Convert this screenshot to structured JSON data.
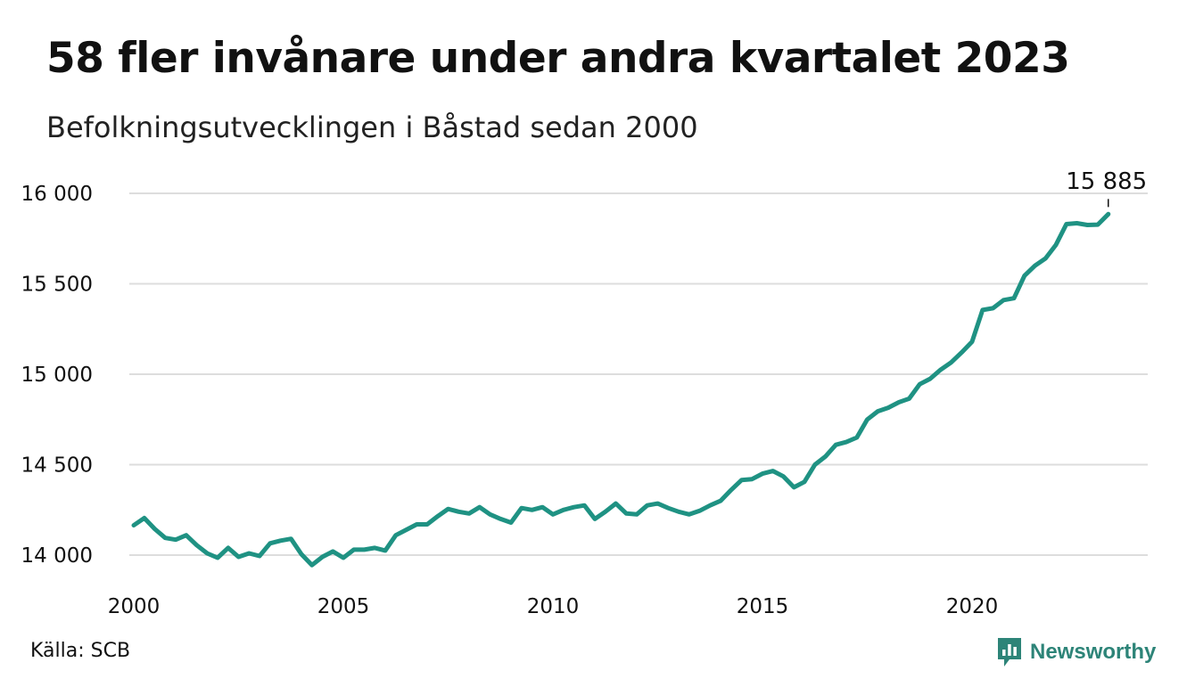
{
  "title": "58 fler invånare under andra kvartalet 2023",
  "subtitle": "Befolkningsutvecklingen i Båstad sedan 2000",
  "source": "Källa: SCB",
  "brand": "Newsworthy",
  "colors": {
    "line": "#1f9283",
    "grid": "#dddddd",
    "brand": "#2d8478"
  },
  "chart_data": {
    "type": "line",
    "title": "58 fler invånare under andra kvartalet 2023",
    "subtitle": "Befolkningsutvecklingen i Båstad sedan 2000",
    "xlabel": "",
    "ylabel": "",
    "xlim": [
      2000,
      2024.5
    ],
    "ylim": [
      13900,
      16000
    ],
    "x_ticks": [
      {
        "value": 2000,
        "label": "2000"
      },
      {
        "value": 2005,
        "label": "2005"
      },
      {
        "value": 2010,
        "label": "2010"
      },
      {
        "value": 2015,
        "label": "2015"
      },
      {
        "value": 2020,
        "label": "2020"
      }
    ],
    "y_ticks": [
      {
        "value": 14000,
        "label": "14 000"
      },
      {
        "value": 14500,
        "label": "14 500"
      },
      {
        "value": 15000,
        "label": "15 000"
      },
      {
        "value": 15500,
        "label": "15 500"
      },
      {
        "value": 16000,
        "label": "16 000"
      }
    ],
    "grid": true,
    "end_label": "15 885",
    "series": [
      {
        "values": [
          [
            2000.0,
            14165
          ],
          [
            2000.25,
            14205
          ],
          [
            2000.5,
            14145
          ],
          [
            2000.75,
            14095
          ],
          [
            2001.0,
            14085
          ],
          [
            2001.25,
            14110
          ],
          [
            2001.5,
            14055
          ],
          [
            2001.75,
            14010
          ],
          [
            2002.0,
            13985
          ],
          [
            2002.25,
            14040
          ],
          [
            2002.5,
            13990
          ],
          [
            2002.75,
            14010
          ],
          [
            2003.0,
            13995
          ],
          [
            2003.25,
            14065
          ],
          [
            2003.5,
            14080
          ],
          [
            2003.75,
            14090
          ],
          [
            2004.0,
            14005
          ],
          [
            2004.25,
            13945
          ],
          [
            2004.5,
            13990
          ],
          [
            2004.75,
            14020
          ],
          [
            2005.0,
            13985
          ],
          [
            2005.25,
            14030
          ],
          [
            2005.5,
            14030
          ],
          [
            2005.75,
            14040
          ],
          [
            2006.0,
            14025
          ],
          [
            2006.25,
            14110
          ],
          [
            2006.5,
            14140
          ],
          [
            2006.75,
            14170
          ],
          [
            2007.0,
            14170
          ],
          [
            2007.25,
            14215
          ],
          [
            2007.5,
            14255
          ],
          [
            2007.75,
            14240
          ],
          [
            2008.0,
            14230
          ],
          [
            2008.25,
            14265
          ],
          [
            2008.5,
            14225
          ],
          [
            2008.75,
            14200
          ],
          [
            2009.0,
            14180
          ],
          [
            2009.25,
            14260
          ],
          [
            2009.5,
            14250
          ],
          [
            2009.75,
            14265
          ],
          [
            2010.0,
            14225
          ],
          [
            2010.25,
            14250
          ],
          [
            2010.5,
            14265
          ],
          [
            2010.75,
            14275
          ],
          [
            2011.0,
            14200
          ],
          [
            2011.25,
            14240
          ],
          [
            2011.5,
            14285
          ],
          [
            2011.75,
            14230
          ],
          [
            2012.0,
            14225
          ],
          [
            2012.25,
            14275
          ],
          [
            2012.5,
            14285
          ],
          [
            2012.75,
            14260
          ],
          [
            2013.0,
            14240
          ],
          [
            2013.25,
            14225
          ],
          [
            2013.5,
            14245
          ],
          [
            2013.75,
            14275
          ],
          [
            2014.0,
            14300
          ],
          [
            2014.25,
            14360
          ],
          [
            2014.5,
            14415
          ],
          [
            2014.75,
            14420
          ],
          [
            2015.0,
            14450
          ],
          [
            2015.25,
            14465
          ],
          [
            2015.5,
            14435
          ],
          [
            2015.75,
            14375
          ],
          [
            2016.0,
            14405
          ],
          [
            2016.25,
            14500
          ],
          [
            2016.5,
            14545
          ],
          [
            2016.75,
            14610
          ],
          [
            2017.0,
            14625
          ],
          [
            2017.25,
            14650
          ],
          [
            2017.5,
            14750
          ],
          [
            2017.75,
            14795
          ],
          [
            2018.0,
            14815
          ],
          [
            2018.25,
            14845
          ],
          [
            2018.5,
            14865
          ],
          [
            2018.75,
            14945
          ],
          [
            2019.0,
            14975
          ],
          [
            2019.25,
            15025
          ],
          [
            2019.5,
            15065
          ],
          [
            2019.75,
            15120
          ],
          [
            2020.0,
            15180
          ],
          [
            2020.25,
            15355
          ],
          [
            2020.5,
            15365
          ],
          [
            2020.75,
            15410
          ],
          [
            2021.0,
            15420
          ],
          [
            2021.25,
            15545
          ],
          [
            2021.5,
            15600
          ],
          [
            2021.75,
            15640
          ],
          [
            2022.0,
            15715
          ],
          [
            2022.25,
            15830
          ],
          [
            2022.5,
            15835
          ],
          [
            2022.75,
            15825
          ],
          [
            2023.0,
            15827
          ],
          [
            2023.25,
            15885
          ]
        ]
      }
    ]
  }
}
